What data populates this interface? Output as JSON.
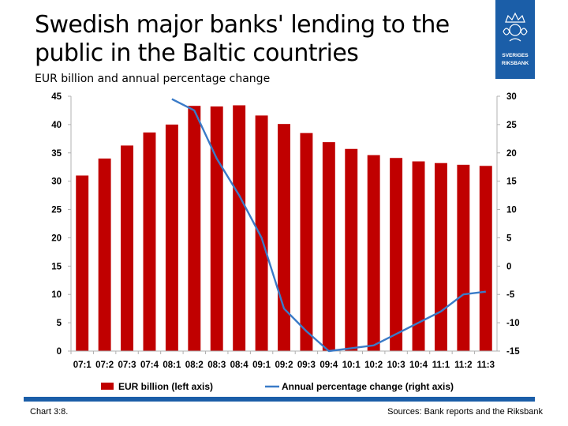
{
  "slide": {
    "title": "Swedish major banks' lending to the public in the Baltic countries",
    "subtitle": "EUR billion and annual percentage change",
    "chart_number": "Chart 3:8.",
    "sources": "Sources: Bank reports and the Riksbank",
    "logo_text": [
      "SVERIGES",
      "RIKSBANK"
    ]
  },
  "colors": {
    "bars": "#c00000",
    "line": "#3a7bc8",
    "logo": "#1b5ea8",
    "footer_bar": "#1b5ea8"
  },
  "chart_data": {
    "type": "bar",
    "categories": [
      "07:1",
      "07:2",
      "07:3",
      "07:4",
      "08:1",
      "08:2",
      "08:3",
      "08:4",
      "09:1",
      "09:2",
      "09:3",
      "09:4",
      "10:1",
      "10:2",
      "10:3",
      "10:4",
      "11:1",
      "11:2",
      "11:3"
    ],
    "series": [
      {
        "name": "EUR billion (left axis)",
        "type": "bar",
        "axis": "left",
        "values": [
          31.0,
          34.0,
          36.3,
          38.6,
          40.0,
          43.3,
          43.2,
          43.4,
          41.6,
          40.1,
          38.5,
          36.9,
          35.7,
          34.6,
          34.1,
          33.5,
          33.2,
          32.9,
          32.7
        ]
      },
      {
        "name": "Annual percentage change (right axis)",
        "type": "line",
        "axis": "right",
        "values": [
          null,
          null,
          null,
          null,
          29.5,
          27.5,
          19.0,
          12.5,
          5.0,
          -7.5,
          -11.5,
          -15.0,
          -14.5,
          -14.0,
          -12.0,
          -10.0,
          -8.0,
          -5.0,
          -4.5
        ]
      }
    ],
    "y_left": {
      "min": 0,
      "max": 45,
      "ticks": [
        0,
        5,
        10,
        15,
        20,
        25,
        30,
        35,
        40,
        45
      ]
    },
    "y_right": {
      "min": -15,
      "max": 30,
      "ticks": [
        -15,
        -10,
        -5,
        0,
        5,
        10,
        15,
        20,
        25,
        30
      ]
    },
    "grid": false,
    "legend_position": "bottom"
  }
}
